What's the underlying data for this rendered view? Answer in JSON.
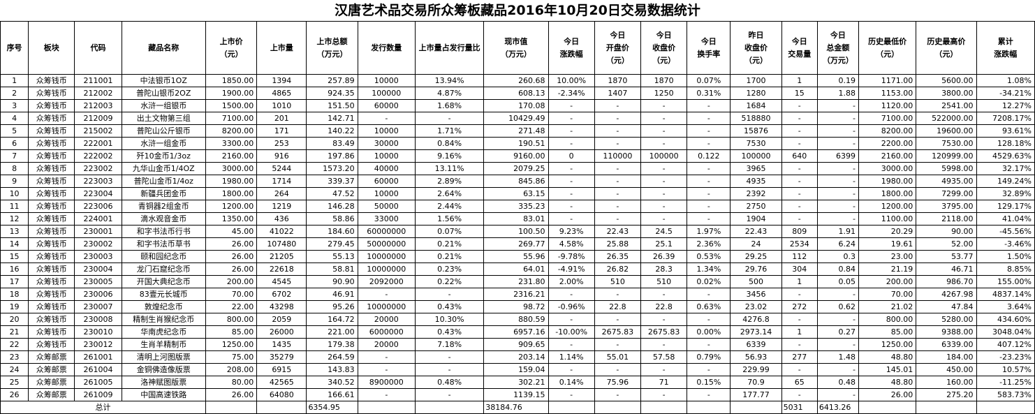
{
  "title": "汉唐艺术品交易所众筹板藏品2016年10月20日交易数据统计",
  "headers": [
    "序号",
    "板块",
    "代码",
    "藏品名称",
    "上市价\n（元）",
    "上市量",
    "上市总额\n（万元）",
    "发行数量",
    "上市量占发行量比",
    "现市值\n（万元）",
    "今日\n涨跌幅",
    "今日\n开盘价\n（元）",
    "今日\n收盘价\n（元）",
    "今日\n换手率",
    "昨日\n收盘价\n（元）",
    "今日\n交易量",
    "今日\n总金额\n（万元）",
    "历史最低价\n（元）",
    "历史最高价\n（元）",
    "累计\n涨跌幅"
  ],
  "rows": [
    [
      "1",
      "众筹钱币",
      "211001",
      "中法银币1OZ",
      "1850.00",
      "1394",
      "257.89",
      "10000",
      "13.94%",
      "260.68",
      "10.00%",
      "1870",
      "1870",
      "0.07%",
      "1700",
      "1",
      "0.19",
      "1171.00",
      "5600.00",
      "1.08%"
    ],
    [
      "2",
      "众筹钱币",
      "212002",
      "普陀山银币2OZ",
      "1900.00",
      "4865",
      "924.35",
      "100000",
      "4.87%",
      "608.13",
      "-2.34%",
      "1407",
      "1250",
      "0.31%",
      "1280",
      "15",
      "1.88",
      "1153.00",
      "3800.00",
      "-34.21%"
    ],
    [
      "3",
      "众筹钱币",
      "212003",
      "水浒一组银币",
      "1500.00",
      "1010",
      "151.50",
      "60000",
      "1.68%",
      "170.08",
      "-",
      "-",
      "-",
      "-",
      "1684",
      "-",
      "-",
      "1120.00",
      "2541.00",
      "12.27%"
    ],
    [
      "4",
      "众筹钱币",
      "212009",
      "出土文物第三组",
      "7100.00",
      "201",
      "142.71",
      "-",
      "-",
      "10429.49",
      "-",
      "-",
      "-",
      "-",
      "518880",
      "-",
      "-",
      "7100.00",
      "522000.00",
      "7208.17%"
    ],
    [
      "5",
      "众筹钱币",
      "215002",
      "普陀山公斤银币",
      "8200.00",
      "171",
      "140.22",
      "10000",
      "1.71%",
      "271.48",
      "-",
      "-",
      "-",
      "-",
      "15876",
      "-",
      "-",
      "8200.00",
      "19600.00",
      "93.61%"
    ],
    [
      "6",
      "众筹钱币",
      "222001",
      "水浒一组金币",
      "3300.00",
      "253",
      "83.49",
      "30000",
      "0.84%",
      "190.51",
      "-",
      "-",
      "-",
      "-",
      "7530",
      "-",
      "-",
      "2200.00",
      "7530.00",
      "128.18%"
    ],
    [
      "7",
      "众筹钱币",
      "222002",
      "歼10金币1/3oz",
      "2160.00",
      "916",
      "197.86",
      "10000",
      "9.16%",
      "9160.00",
      "0",
      "110000",
      "100000",
      "0.122",
      "100000",
      "640",
      "6399",
      "2160.00",
      "120999.00",
      "4529.63%"
    ],
    [
      "8",
      "众筹钱币",
      "223002",
      "九华山金币1/4OZ",
      "3000.00",
      "5244",
      "1573.20",
      "40000",
      "13.11%",
      "2079.25",
      "-",
      "-",
      "-",
      "-",
      "3965",
      "-",
      "-",
      "3000.00",
      "5998.00",
      "32.17%"
    ],
    [
      "9",
      "众筹钱币",
      "223003",
      "普陀山金币1/4oz",
      "1980.00",
      "1714",
      "339.37",
      "60000",
      "2.89%",
      "845.86",
      "-",
      "-",
      "-",
      "-",
      "4935",
      "-",
      "-",
      "1980.00",
      "4935.00",
      "149.24%"
    ],
    [
      "10",
      "众筹钱币",
      "223004",
      "新疆兵团金币",
      "1800.00",
      "264",
      "47.52",
      "10000",
      "2.64%",
      "63.15",
      "-",
      "-",
      "-",
      "-",
      "2392",
      "-",
      "-",
      "1800.00",
      "7299.00",
      "32.89%"
    ],
    [
      "11",
      "众筹钱币",
      "223006",
      "青铜器2组金币",
      "1200.00",
      "1219",
      "146.28",
      "50000",
      "2.44%",
      "335.23",
      "-",
      "-",
      "-",
      "-",
      "2750",
      "-",
      "-",
      "1200.00",
      "3795.00",
      "129.17%"
    ],
    [
      "12",
      "众筹钱币",
      "224001",
      "滴水观音金币",
      "1350.00",
      "436",
      "58.86",
      "33000",
      "1.56%",
      "83.01",
      "-",
      "-",
      "-",
      "-",
      "1904",
      "-",
      "-",
      "1100.00",
      "2118.00",
      "41.04%"
    ],
    [
      "13",
      "众筹钱币",
      "230001",
      "和字书法币行书",
      "45.00",
      "41022",
      "184.60",
      "60000000",
      "0.07%",
      "100.50",
      "9.23%",
      "22.43",
      "24.5",
      "1.97%",
      "22.43",
      "809",
      "1.91",
      "20.29",
      "90.00",
      "-45.56%"
    ],
    [
      "14",
      "众筹钱币",
      "230002",
      "和字书法币草书",
      "26.00",
      "107480",
      "279.45",
      "50000000",
      "0.21%",
      "269.77",
      "4.58%",
      "25.88",
      "25.1",
      "2.36%",
      "24",
      "2534",
      "6.24",
      "19.61",
      "52.00",
      "-3.46%"
    ],
    [
      "15",
      "众筹钱币",
      "230003",
      "颐和园纪念币",
      "26.00",
      "21205",
      "55.13",
      "10000000",
      "0.21%",
      "55.96",
      "-9.78%",
      "26.35",
      "26.39",
      "0.53%",
      "29.25",
      "112",
      "0.3",
      "23.00",
      "53.77",
      "1.50%"
    ],
    [
      "16",
      "众筹钱币",
      "230004",
      "龙门石窟纪念币",
      "26.00",
      "22618",
      "58.81",
      "10000000",
      "0.23%",
      "64.01",
      "-4.91%",
      "26.82",
      "28.3",
      "1.34%",
      "29.76",
      "304",
      "0.84",
      "21.19",
      "46.71",
      "8.85%"
    ],
    [
      "17",
      "众筹钱币",
      "230005",
      "开国大典纪念币",
      "200.00",
      "4545",
      "90.90",
      "2092000",
      "0.22%",
      "231.80",
      "2.00%",
      "510",
      "510",
      "0.02%",
      "500",
      "1",
      "0.05",
      "200.00",
      "986.70",
      "155.00%"
    ],
    [
      "18",
      "众筹钱币",
      "230006",
      "83壹元长城币",
      "70.00",
      "6702",
      "46.91",
      "-",
      "-",
      "2316.21",
      "-",
      "-",
      "-",
      "-",
      "3456",
      "-",
      "-",
      "70.00",
      "4267.98",
      "4837.14%"
    ],
    [
      "19",
      "众筹钱币",
      "230007",
      "敦煌纪念币",
      "22.00",
      "43298",
      "95.26",
      "10000000",
      "0.43%",
      "98.72",
      "-0.96%",
      "22.8",
      "22.8",
      "0.63%",
      "23.02",
      "272",
      "0.62",
      "21.02",
      "47.84",
      "3.64%"
    ],
    [
      "20",
      "众筹钱币",
      "230008",
      "精制生肖猴纪念币",
      "800.00",
      "2059",
      "164.72",
      "20000",
      "10.30%",
      "880.59",
      "-",
      "-",
      "-",
      "-",
      "4276.8",
      "-",
      "-",
      "800.00",
      "5280.00",
      "434.60%"
    ],
    [
      "21",
      "众筹钱币",
      "230010",
      "华南虎纪念币",
      "85.00",
      "26000",
      "221.00",
      "6000000",
      "0.43%",
      "6957.16",
      "-10.00%",
      "2675.83",
      "2675.83",
      "0.00%",
      "2973.14",
      "1",
      "0.27",
      "85.00",
      "9388.00",
      "3048.04%"
    ],
    [
      "22",
      "众筹钱币",
      "230012",
      "生肖羊精制币",
      "1250.00",
      "1435",
      "179.38",
      "20000",
      "7.18%",
      "909.65",
      "-",
      "-",
      "-",
      "-",
      "6339",
      "-",
      "-",
      "1250.00",
      "6339.00",
      "407.12%"
    ],
    [
      "23",
      "众筹邮票",
      "261001",
      "清明上河图版票",
      "75.00",
      "35279",
      "264.59",
      "-",
      "-",
      "203.14",
      "1.14%",
      "55.01",
      "57.58",
      "0.79%",
      "56.93",
      "277",
      "1.48",
      "48.80",
      "184.00",
      "-23.23%"
    ],
    [
      "24",
      "众筹邮票",
      "261004",
      "金铜佛造像版票",
      "208.00",
      "6915",
      "143.83",
      "-",
      "-",
      "159.04",
      "-",
      "-",
      "-",
      "-",
      "229.99",
      "-",
      "-",
      "145.01",
      "450.00",
      "10.57%"
    ],
    [
      "25",
      "众筹邮票",
      "261005",
      "洛神赋图版票",
      "80.00",
      "42565",
      "340.52",
      "8900000",
      "0.48%",
      "302.21",
      "0.14%",
      "75.96",
      "71",
      "0.15%",
      "70.9",
      "65",
      "0.48",
      "48.80",
      "160.00",
      "-11.25%"
    ],
    [
      "26",
      "众筹邮票",
      "261009",
      "中国高速铁路",
      "26.00",
      "64080",
      "166.61",
      "-",
      "-",
      "1139.15",
      "-",
      "-",
      "-",
      "-",
      "177.77",
      "-",
      "-",
      "26.00",
      "275.20",
      "583.73%"
    ]
  ],
  "total": {
    "label": "总计",
    "listing_total": "6354.95",
    "market_value": "38184.76",
    "volume": "5031",
    "amount": "6413.26"
  }
}
